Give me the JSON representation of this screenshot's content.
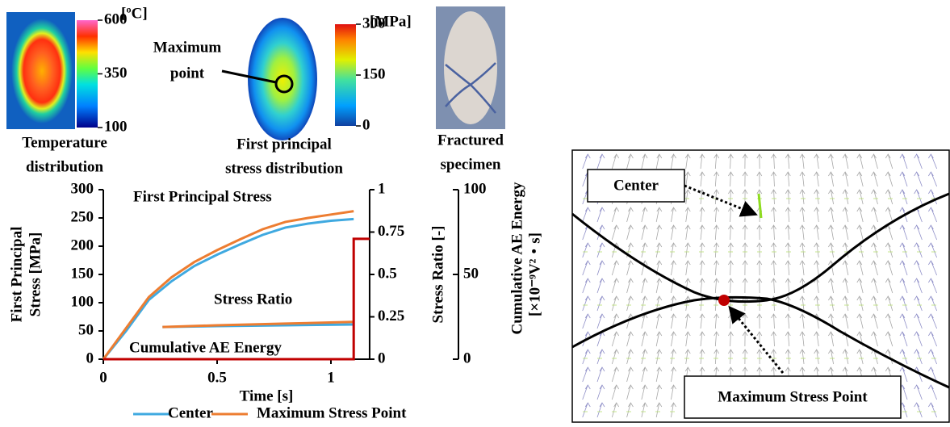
{
  "panels": [
    {
      "label": [
        "Temperature",
        "distribution"
      ],
      "colorbar": {
        "unit": "[ºC]",
        "lim": [
          100,
          600
        ],
        "ticks": [
          100,
          350,
          600
        ]
      }
    },
    {
      "label": [
        "First principal",
        "stress distribution"
      ],
      "callout": [
        "Maximum",
        "point"
      ],
      "colorbar": {
        "unit": "[MPa]",
        "lim": [
          0,
          300
        ],
        "ticks": [
          0,
          150,
          300
        ]
      }
    },
    {
      "label": [
        "Fractured",
        "specimen"
      ]
    }
  ],
  "chart_data": {
    "type": "line",
    "x_label": "Time [s]",
    "y_label": [
      "First Principal",
      "Stress [MPa]"
    ],
    "y2_label": "Stress Ratio [-]",
    "y3_label": [
      "Cumulative  AE Energy",
      "[×10⁻⁹V²・s]"
    ],
    "annotations": [
      "First Principal Stress",
      "Stress Ratio",
      "Cumulative  AE Energy"
    ],
    "xlim": [
      0,
      1.17
    ],
    "xticks": [
      0,
      0.5,
      1
    ],
    "ylim": [
      0,
      300
    ],
    "yticks": [
      0,
      50,
      100,
      150,
      200,
      250,
      300
    ],
    "y2lim": [
      0,
      1
    ],
    "y2ticks": [
      0,
      0.25,
      0.5,
      0.75,
      1
    ],
    "y3lim": [
      0,
      100
    ],
    "y3ticks": [
      0,
      50,
      100
    ],
    "series": [
      {
        "name": "Center",
        "color": "#3fa9e0",
        "x": [
          0,
          0.1,
          0.2,
          0.3,
          0.4,
          0.5,
          0.6,
          0.7,
          0.8,
          0.9,
          1.0,
          1.1
        ],
        "values": [
          0,
          50,
          105,
          138,
          165,
          185,
          203,
          220,
          233,
          240,
          245,
          248
        ]
      },
      {
        "name": "Maximum  Stress Point",
        "color": "#ed7d31",
        "x": [
          0,
          0.1,
          0.2,
          0.3,
          0.4,
          0.5,
          0.6,
          0.7,
          0.8,
          0.9,
          1.0,
          1.1
        ],
        "values": [
          0,
          55,
          110,
          145,
          172,
          193,
          212,
          230,
          243,
          250,
          256,
          262
        ]
      },
      {
        "color": "#3fa9e0",
        "axis": "y2",
        "x": [
          0.26,
          0.5,
          0.8,
          1.1
        ],
        "values": [
          0.19,
          0.195,
          0.2,
          0.205
        ]
      },
      {
        "color": "#ed7d31",
        "axis": "y2",
        "x": [
          0.26,
          0.5,
          0.8,
          1.1
        ],
        "values": [
          0.19,
          0.2,
          0.21,
          0.22
        ]
      },
      {
        "color": "#c00000",
        "axis": "y3",
        "x": [
          0,
          1.1,
          1.1,
          1.17
        ],
        "values": [
          0,
          0,
          71,
          71
        ]
      }
    ]
  },
  "diagram": {
    "labels": [
      "Center",
      "Maximum  Stress Point"
    ]
  }
}
